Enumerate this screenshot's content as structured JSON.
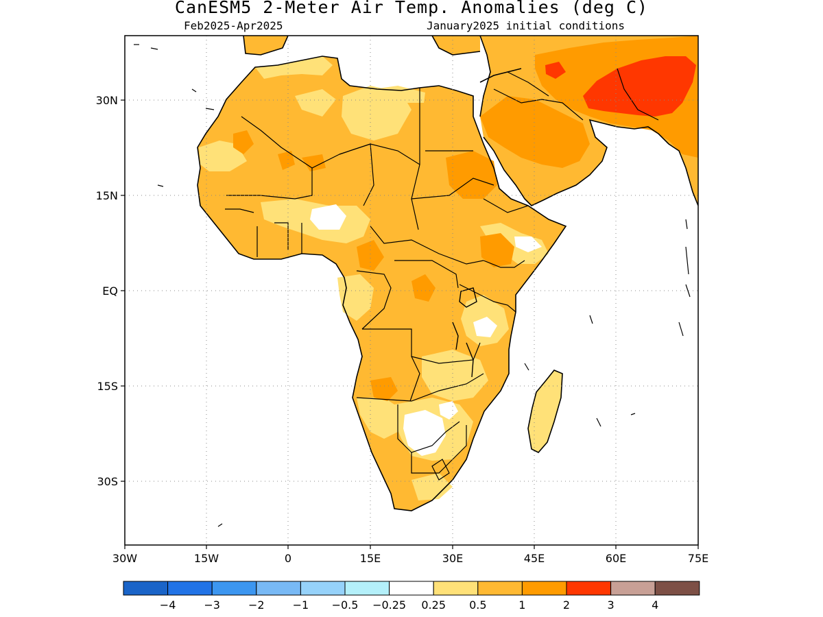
{
  "header": {
    "title": "CanESM5 2-Meter Air Temp. Anomalies (deg C)",
    "period": "Feb2025-Apr2025",
    "init": "January2025 initial conditions"
  },
  "axes": {
    "lat_labels": [
      "30N",
      "15N",
      "EQ",
      "15S",
      "30S"
    ],
    "lon_labels": [
      "30W",
      "15W",
      "0",
      "15E",
      "30E",
      "45E",
      "60E",
      "75E"
    ]
  },
  "colorbar": {
    "colors": [
      "#1a64c8",
      "#2173e6",
      "#3c96f0",
      "#78b9f5",
      "#96d2fa",
      "#b4f0fa",
      "#ffffff",
      "#ffe178",
      "#ffb932",
      "#ff9b00",
      "#ff3700",
      "#c8a096",
      "#7d5046"
    ],
    "labels": [
      "-4",
      "-3",
      "-2",
      "-1",
      "-0.5",
      "-0.25",
      "0.25",
      "0.5",
      "1",
      "2",
      "3",
      "4"
    ]
  },
  "map": {
    "type": "heatmap",
    "lon_range": [
      -30,
      75
    ],
    "lat_range": [
      -46,
      46
    ],
    "grid": "dotted",
    "colors": {
      "ocean": "#ffffff",
      "anom_0_5_to_1": "#ffe178",
      "anom_1_to_2": "#ffb932",
      "anom_2_to_3": "#ff9b00",
      "anom_3_to_4": "#ff3700",
      "anom_near_zero": "#ffffff",
      "coast": "#000000"
    }
  }
}
